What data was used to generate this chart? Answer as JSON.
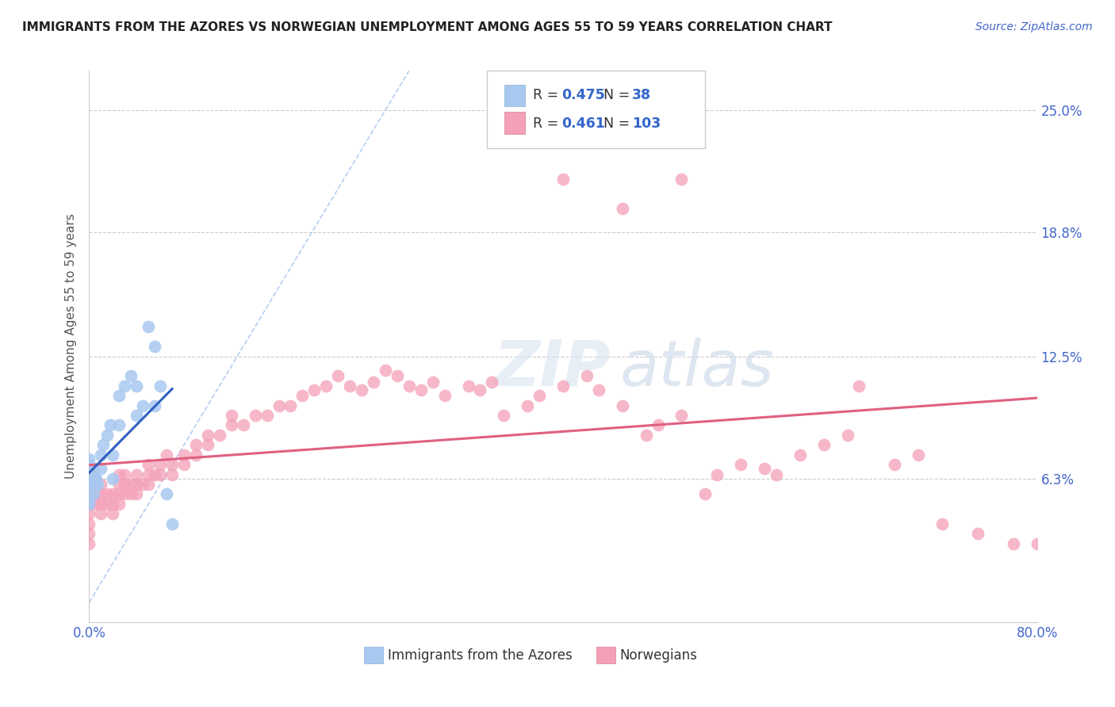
{
  "title": "IMMIGRANTS FROM THE AZORES VS NORWEGIAN UNEMPLOYMENT AMONG AGES 55 TO 59 YEARS CORRELATION CHART",
  "source": "Source: ZipAtlas.com",
  "ylabel": "Unemployment Among Ages 55 to 59 years",
  "xlim": [
    0,
    0.8
  ],
  "ylim": [
    -0.01,
    0.27
  ],
  "yticks": [
    0.063,
    0.125,
    0.188,
    0.25
  ],
  "ytick_labels": [
    "6.3%",
    "12.5%",
    "18.8%",
    "25.0%"
  ],
  "legend_R1": "0.475",
  "legend_N1": "38",
  "legend_R2": "0.461",
  "legend_N2": "103",
  "label1": "Immigrants from the Azores",
  "label2": "Norwegians",
  "azores_color": "#a8c8f0",
  "norwegians_color": "#f4a0b8",
  "azores_line_color": "#3060c0",
  "norwegians_line_color": "#e06080",
  "ref_line_color": "#b0c8f0",
  "azores_x": [
    0.0,
    0.0,
    0.0,
    0.0,
    0.0,
    0.0,
    0.0,
    0.0,
    0.0,
    0.0,
    0.002,
    0.003,
    0.004,
    0.004,
    0.005,
    0.005,
    0.006,
    0.007,
    0.01,
    0.01,
    0.012,
    0.015,
    0.018,
    0.02,
    0.02,
    0.025,
    0.025,
    0.03,
    0.035,
    0.04,
    0.04,
    0.045,
    0.05,
    0.055,
    0.055,
    0.06,
    0.065,
    0.07
  ],
  "azores_y": [
    0.05,
    0.058,
    0.062,
    0.065,
    0.068,
    0.07,
    0.073,
    0.063,
    0.057,
    0.052,
    0.063,
    0.065,
    0.068,
    0.055,
    0.063,
    0.06,
    0.063,
    0.06,
    0.068,
    0.075,
    0.08,
    0.085,
    0.09,
    0.063,
    0.075,
    0.09,
    0.105,
    0.11,
    0.115,
    0.11,
    0.095,
    0.1,
    0.14,
    0.13,
    0.1,
    0.11,
    0.055,
    0.04
  ],
  "norwegians_x": [
    0.0,
    0.0,
    0.0,
    0.0,
    0.0,
    0.0,
    0.0,
    0.0,
    0.0,
    0.0,
    0.0,
    0.0,
    0.005,
    0.005,
    0.01,
    0.01,
    0.01,
    0.01,
    0.015,
    0.015,
    0.02,
    0.02,
    0.02,
    0.025,
    0.025,
    0.025,
    0.025,
    0.03,
    0.03,
    0.03,
    0.035,
    0.035,
    0.04,
    0.04,
    0.04,
    0.045,
    0.05,
    0.05,
    0.05,
    0.055,
    0.06,
    0.06,
    0.065,
    0.07,
    0.07,
    0.08,
    0.08,
    0.09,
    0.09,
    0.1,
    0.1,
    0.11,
    0.12,
    0.12,
    0.13,
    0.14,
    0.15,
    0.16,
    0.17,
    0.18,
    0.19,
    0.2,
    0.21,
    0.22,
    0.23,
    0.24,
    0.25,
    0.26,
    0.27,
    0.28,
    0.29,
    0.3,
    0.32,
    0.33,
    0.34,
    0.35,
    0.37,
    0.38,
    0.4,
    0.42,
    0.43,
    0.45,
    0.47,
    0.48,
    0.5,
    0.52,
    0.53,
    0.55,
    0.57,
    0.58,
    0.6,
    0.62,
    0.64,
    0.65,
    0.68,
    0.7,
    0.72,
    0.75,
    0.78,
    0.8,
    0.4,
    0.5,
    0.45
  ],
  "norwegians_y": [
    0.04,
    0.045,
    0.05,
    0.052,
    0.055,
    0.058,
    0.06,
    0.063,
    0.065,
    0.068,
    0.035,
    0.03,
    0.05,
    0.055,
    0.045,
    0.05,
    0.055,
    0.06,
    0.05,
    0.055,
    0.045,
    0.05,
    0.055,
    0.05,
    0.055,
    0.06,
    0.065,
    0.055,
    0.06,
    0.065,
    0.055,
    0.06,
    0.06,
    0.055,
    0.065,
    0.06,
    0.06,
    0.065,
    0.07,
    0.065,
    0.065,
    0.07,
    0.075,
    0.065,
    0.07,
    0.07,
    0.075,
    0.075,
    0.08,
    0.08,
    0.085,
    0.085,
    0.09,
    0.095,
    0.09,
    0.095,
    0.095,
    0.1,
    0.1,
    0.105,
    0.108,
    0.11,
    0.115,
    0.11,
    0.108,
    0.112,
    0.118,
    0.115,
    0.11,
    0.108,
    0.112,
    0.105,
    0.11,
    0.108,
    0.112,
    0.095,
    0.1,
    0.105,
    0.11,
    0.115,
    0.108,
    0.1,
    0.085,
    0.09,
    0.095,
    0.055,
    0.065,
    0.07,
    0.068,
    0.065,
    0.075,
    0.08,
    0.085,
    0.11,
    0.07,
    0.075,
    0.04,
    0.035,
    0.03,
    0.03,
    0.215,
    0.215,
    0.2
  ]
}
